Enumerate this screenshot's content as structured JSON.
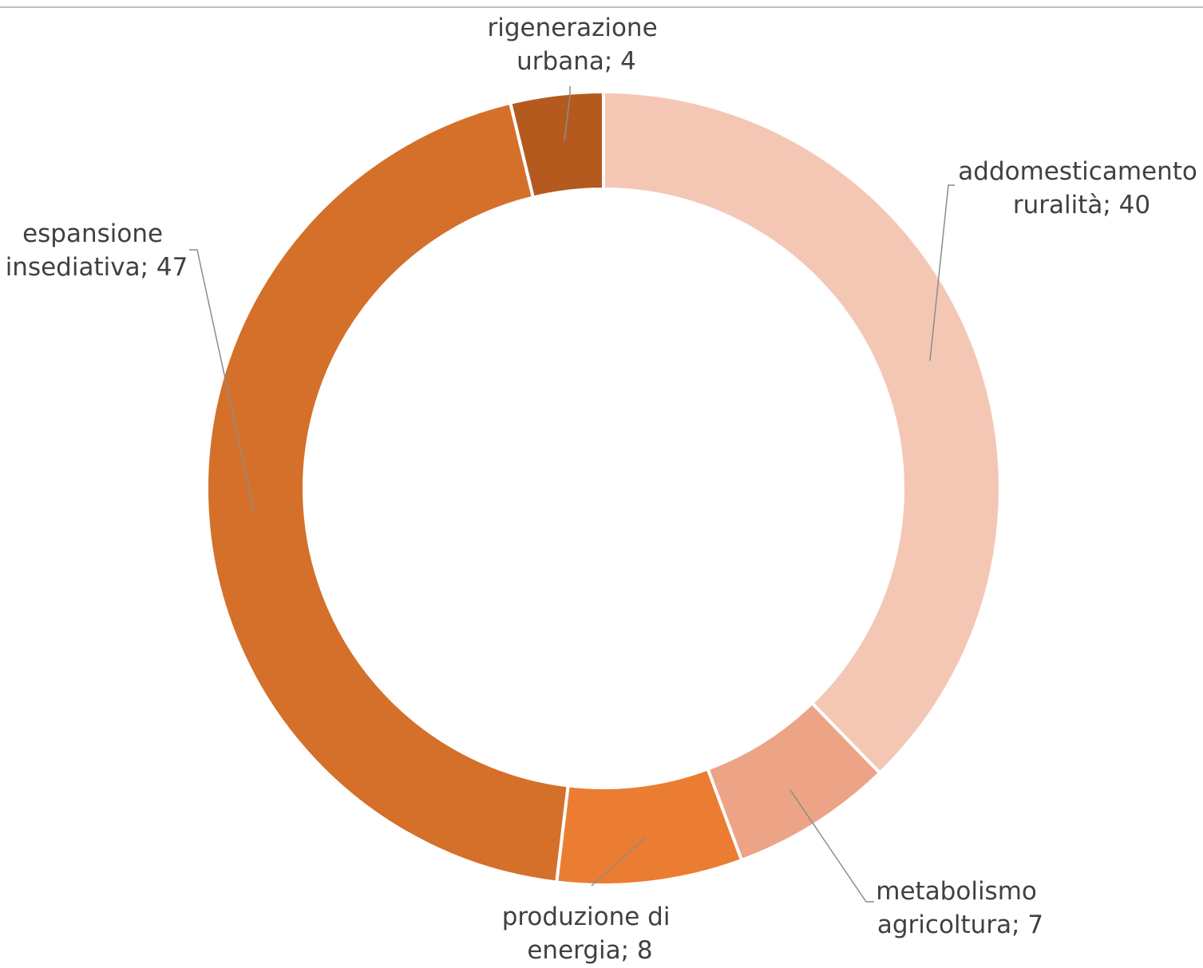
{
  "chart_data": {
    "type": "pie",
    "donut": true,
    "title": "",
    "legend": "none",
    "slice_order": "clockwise from 12 o'clock",
    "series": [
      {
        "label_lines": [
          "addomesticamento",
          "ruralità; 40"
        ],
        "name": "addomesticamento ruralità",
        "value": 40,
        "color": "#F4C7B5"
      },
      {
        "label_lines": [
          "metabolismo",
          "agricoltura; 7"
        ],
        "name": "metabolismo agricoltura",
        "value": 7,
        "color": "#EDA386"
      },
      {
        "label_lines": [
          "produzione di",
          "energia; 8"
        ],
        "name": "produzione di energia",
        "value": 8,
        "color": "#EA7D31"
      },
      {
        "label_lines": [
          "espansione",
          "insediativa; 47"
        ],
        "name": "espansione insediativa",
        "value": 47,
        "color": "#D4702A"
      },
      {
        "label_lines": [
          "rigenerazione",
          "urbana; 4"
        ],
        "name": "rigenerazione urbana",
        "value": 4,
        "color": "#B55A1F"
      }
    ]
  }
}
